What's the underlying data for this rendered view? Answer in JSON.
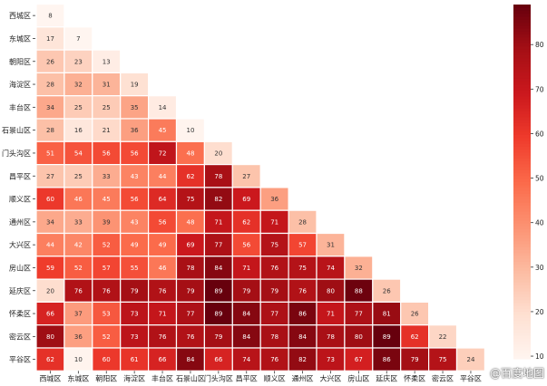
{
  "chart_data": {
    "type": "heatmap",
    "title": "",
    "xlabel": "",
    "ylabel": "",
    "row_labels": [
      "西城区",
      "东城区",
      "朝阳区",
      "海淀区",
      "丰台区",
      "石景山区",
      "门头沟区",
      "昌平区",
      "顺义区",
      "通州区",
      "大兴区",
      "房山区",
      "延庆区",
      "怀柔区",
      "密云区",
      "平谷区"
    ],
    "col_labels": [
      "西城区",
      "东城区",
      "朝阳区",
      "海淀区",
      "丰台区",
      "石景山区",
      "门头沟区",
      "昌平区",
      "顺义区",
      "通州区",
      "大兴区",
      "房山区",
      "延庆区",
      "怀柔区",
      "密云区",
      "平谷区"
    ],
    "mask": "upper triangle (lower triangle incl. diagonal shown)",
    "values": [
      [
        8
      ],
      [
        17,
        7
      ],
      [
        26,
        23,
        13
      ],
      [
        28,
        32,
        31,
        19
      ],
      [
        34,
        25,
        25,
        35,
        14
      ],
      [
        28,
        16,
        21,
        36,
        45,
        10
      ],
      [
        51,
        54,
        56,
        56,
        72,
        48,
        20
      ],
      [
        27,
        25,
        33,
        43,
        44,
        62,
        78,
        27
      ],
      [
        60,
        46,
        45,
        56,
        64,
        75,
        82,
        69,
        36
      ],
      [
        34,
        33,
        39,
        43,
        56,
        48,
        71,
        62,
        71,
        28
      ],
      [
        44,
        42,
        52,
        49,
        49,
        69,
        77,
        56,
        75,
        57,
        31
      ],
      [
        59,
        52,
        57,
        55,
        46,
        78,
        84,
        71,
        76,
        75,
        74,
        32
      ],
      [
        20,
        76,
        76,
        79,
        76,
        79,
        89,
        79,
        79,
        76,
        80,
        88,
        26
      ],
      [
        66,
        37,
        53,
        73,
        71,
        77,
        89,
        84,
        77,
        86,
        71,
        77,
        81,
        26
      ],
      [
        80,
        36,
        52,
        73,
        76,
        76,
        79,
        84,
        78,
        84,
        78,
        80,
        89,
        62,
        22
      ],
      [
        62,
        10,
        60,
        61,
        66,
        84,
        66,
        74,
        76,
        82,
        73,
        67,
        86,
        79,
        75,
        24
      ]
    ],
    "colormap": "Reds",
    "colormap_stops": [
      "#fff5f0",
      "#fee0d2",
      "#fcbba1",
      "#fc9272",
      "#fb6a4a",
      "#ef3b2c",
      "#cb181d",
      "#a50f15",
      "#67000d"
    ],
    "colorbar_range": [
      9.4,
      89
    ],
    "colorbar_ticks": [
      10,
      20,
      30,
      40,
      50,
      60,
      70,
      80
    ],
    "annotations": true,
    "grid": false
  },
  "watermark": "@百度地图"
}
